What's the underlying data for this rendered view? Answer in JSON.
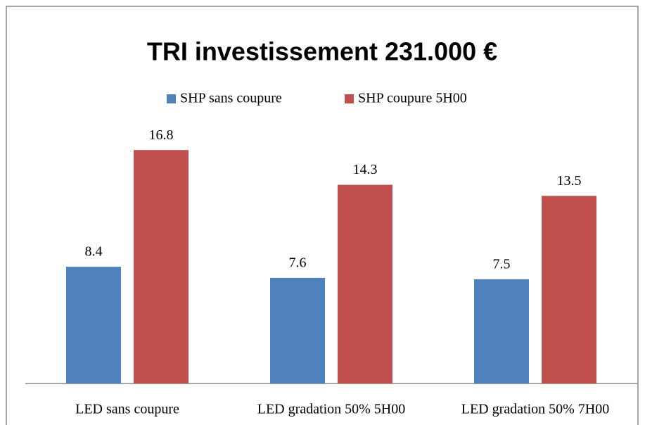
{
  "chart_data": {
    "type": "bar",
    "title": "TRI investissement 231.000 €",
    "categories": [
      "LED sans coupure",
      "LED gradation 50% 5H00",
      "LED gradation 50% 7H00"
    ],
    "series": [
      {
        "name": "SHP sans coupure",
        "color": "#4f81bd",
        "values": [
          8.4,
          7.6,
          7.5
        ]
      },
      {
        "name": "SHP coupure 5H00",
        "color": "#c0504d",
        "values": [
          16.8,
          14.3,
          13.5
        ]
      }
    ],
    "ylim": [
      0,
      20
    ],
    "legend": "top"
  }
}
